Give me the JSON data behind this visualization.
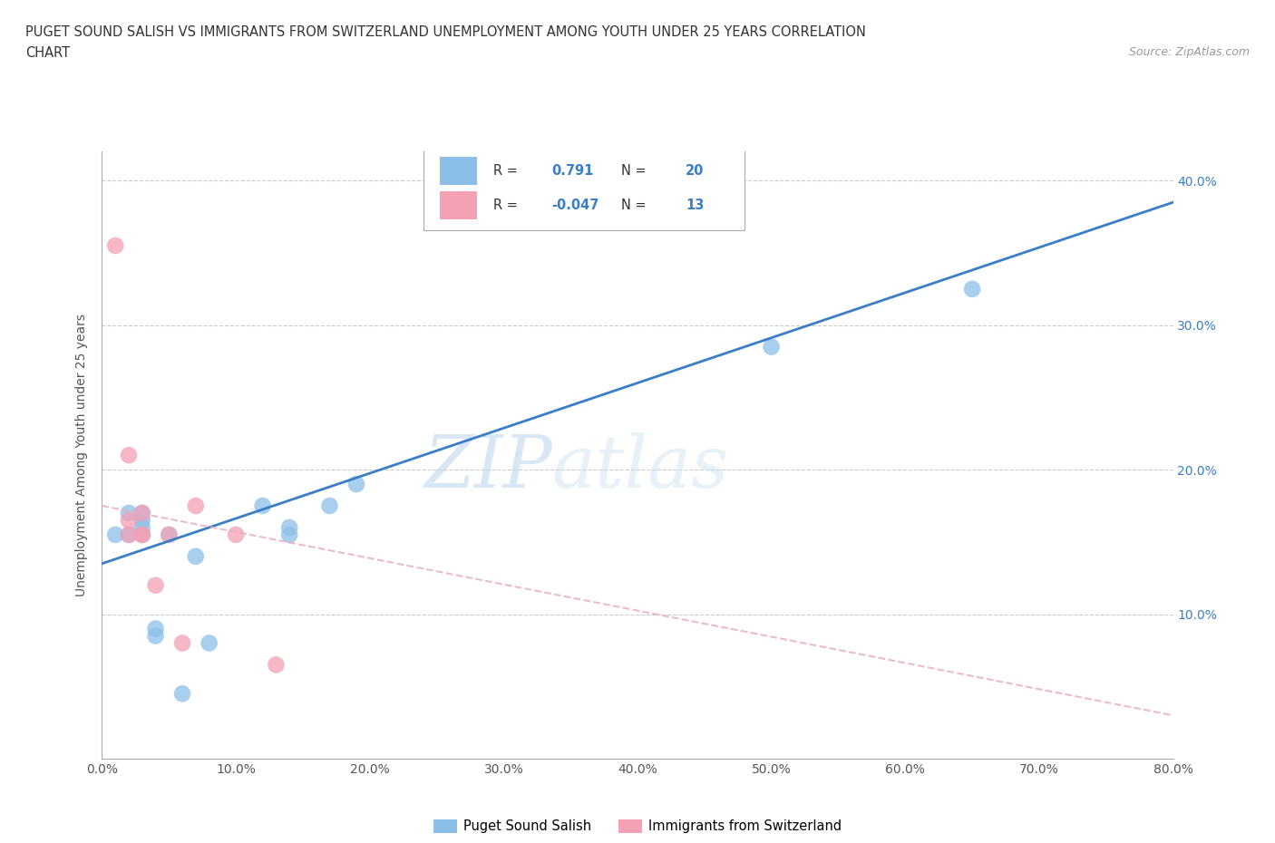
{
  "title_line1": "PUGET SOUND SALISH VS IMMIGRANTS FROM SWITZERLAND UNEMPLOYMENT AMONG YOUTH UNDER 25 YEARS CORRELATION",
  "title_line2": "CHART",
  "source": "Source: ZipAtlas.com",
  "ylabel": "Unemployment Among Youth under 25 years",
  "legend_label1": "Puget Sound Salish",
  "legend_label2": "Immigrants from Switzerland",
  "r1": 0.791,
  "n1": 20,
  "r2": -0.047,
  "n2": 13,
  "color1": "#8bbfe8",
  "color2": "#f4a0b5",
  "line1_color": "#3a7ec6",
  "line2_color": "#e8b0c0",
  "watermark_zip": "ZIP",
  "watermark_atlas": "atlas",
  "xlim": [
    0.0,
    0.8
  ],
  "ylim": [
    0.0,
    0.42
  ],
  "xticks": [
    0.0,
    0.1,
    0.2,
    0.3,
    0.4,
    0.5,
    0.6,
    0.7,
    0.8
  ],
  "yticks": [
    0.0,
    0.1,
    0.2,
    0.3,
    0.4
  ],
  "xticklabels": [
    "0.0%",
    "10.0%",
    "20.0%",
    "30.0%",
    "40.0%",
    "50.0%",
    "60.0%",
    "70.0%",
    "80.0%"
  ],
  "yticklabels_right": [
    "",
    "10.0%",
    "20.0%",
    "30.0%",
    "40.0%"
  ],
  "blue_x": [
    0.01,
    0.02,
    0.02,
    0.03,
    0.03,
    0.03,
    0.03,
    0.04,
    0.04,
    0.05,
    0.06,
    0.07,
    0.08,
    0.12,
    0.14,
    0.14,
    0.17,
    0.19,
    0.5,
    0.65
  ],
  "blue_y": [
    0.155,
    0.155,
    0.17,
    0.155,
    0.16,
    0.165,
    0.17,
    0.085,
    0.09,
    0.155,
    0.045,
    0.14,
    0.08,
    0.175,
    0.16,
    0.155,
    0.175,
    0.19,
    0.285,
    0.325
  ],
  "pink_x": [
    0.01,
    0.02,
    0.02,
    0.02,
    0.03,
    0.03,
    0.03,
    0.04,
    0.05,
    0.06,
    0.07,
    0.1,
    0.13
  ],
  "pink_y": [
    0.355,
    0.21,
    0.155,
    0.165,
    0.155,
    0.155,
    0.17,
    0.12,
    0.155,
    0.08,
    0.175,
    0.155,
    0.065
  ],
  "blue_line_x0": 0.0,
  "blue_line_y0": 0.135,
  "blue_line_x1": 0.8,
  "blue_line_y1": 0.385,
  "pink_line_x0": 0.0,
  "pink_line_y0": 0.175,
  "pink_line_x1": 0.8,
  "pink_line_y1": 0.03
}
